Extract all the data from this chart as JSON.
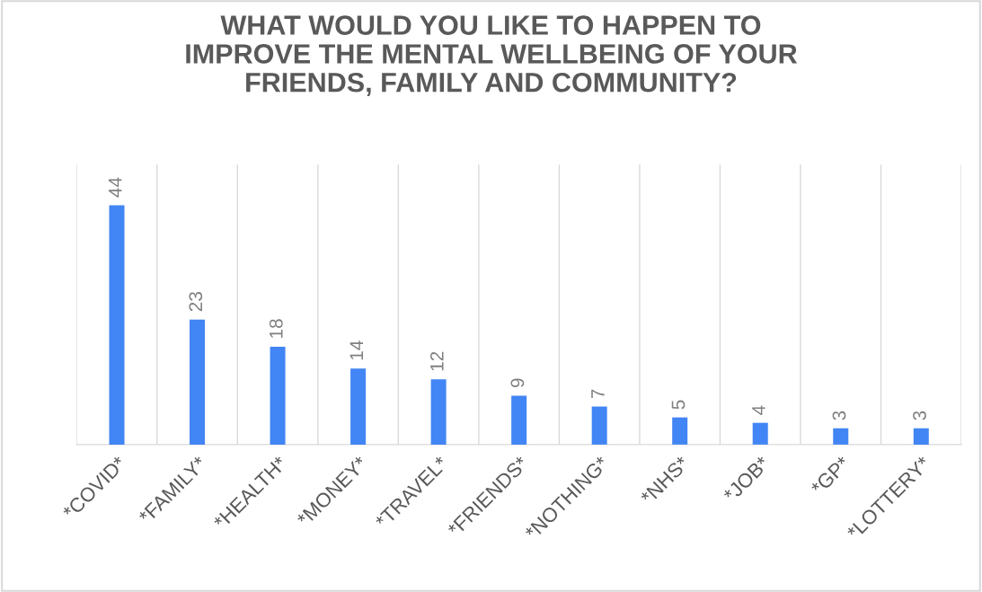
{
  "chart_data": {
    "type": "bar",
    "title": "WHAT WOULD YOU LIKE TO HAPPEN TO\nIMPROVE THE MENTAL WELLBEING OF YOUR\nFRIENDS, FAMILY AND COMMUNITY?",
    "categories": [
      "*COVID*",
      "*FAMILY*",
      "*HEALTH*",
      "*MONEY*",
      "*TRAVEL*",
      "*FRIENDS*",
      "*NOTHING*",
      "*NHS*",
      "*JOB*",
      "*GP*",
      "*LOTTERY*"
    ],
    "values": [
      44,
      23,
      18,
      14,
      12,
      9,
      7,
      5,
      4,
      3,
      3
    ],
    "color": "#4285f4",
    "data_labels": true,
    "grid": "x",
    "legend": false
  }
}
